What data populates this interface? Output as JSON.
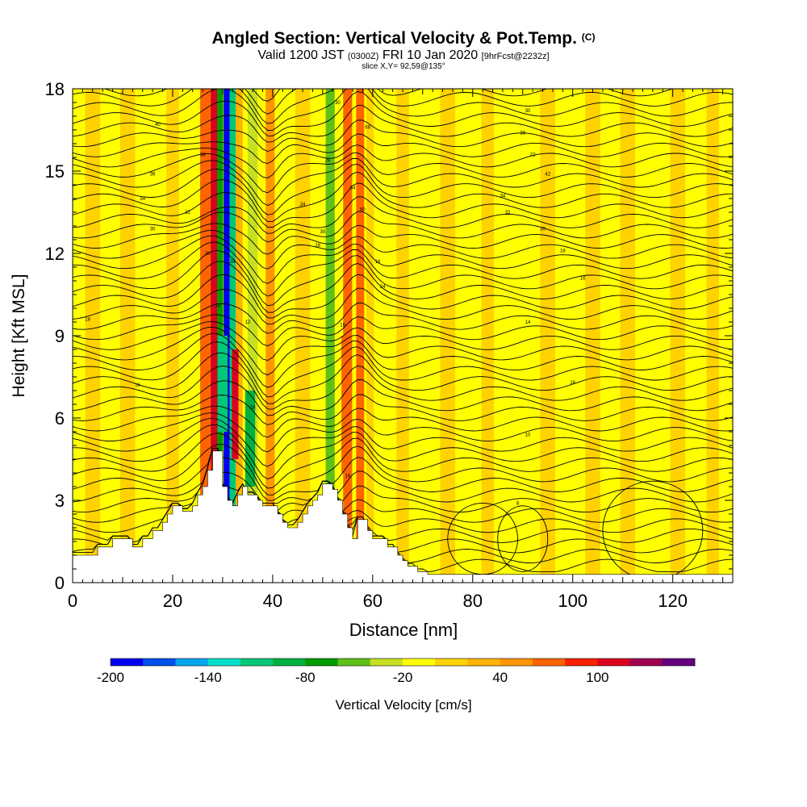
{
  "title": {
    "main": "Angled Section: Vertical Velocity & Pot.Temp.",
    "tag": "(C)"
  },
  "subtitle": {
    "valid": "Valid 1200 JST",
    "utc": "(0300Z)",
    "date": "FRI 10 Jan 2020",
    "fcst": "[9hrFcst@2232z]"
  },
  "slice_text": "slice X,Y= 92,59@135°",
  "chart_data": {
    "type": "heatmap",
    "xlabel": "Distance [nm]",
    "ylabel": "Height [Kft MSL]",
    "xlim": [
      0,
      132
    ],
    "ylim": [
      0,
      18
    ],
    "x_ticks": [
      0,
      20,
      40,
      60,
      80,
      100,
      120
    ],
    "y_ticks": [
      0,
      3,
      6,
      9,
      12,
      15,
      18
    ],
    "colorbar": {
      "label": "Vertical Velocity [cm/s]",
      "tick_values": [
        -200,
        -140,
        -80,
        -20,
        40,
        100
      ],
      "tick_labels": [
        "-200",
        "-140",
        "-80",
        "-20",
        "40",
        "100"
      ],
      "colors": [
        "#0000f0",
        "#0050f0",
        "#00a8f0",
        "#00e0c8",
        "#00c878",
        "#00b040",
        "#009c00",
        "#60c018",
        "#c8e020",
        "#ffff00",
        "#ffd200",
        "#ffb400",
        "#ff9600",
        "#ff6400",
        "#ff2000",
        "#dc0020",
        "#a00050",
        "#640080"
      ]
    },
    "background_value": -10,
    "velocity_bands": [
      {
        "x": 4,
        "width": 3,
        "value": 15
      },
      {
        "x": 11,
        "width": 3,
        "value": 10
      },
      {
        "x": 20,
        "width": 2.5,
        "value": 15
      },
      {
        "x": 26.5,
        "width": 2,
        "value": 75
      },
      {
        "x": 28.3,
        "width": 1.5,
        "value": 100
      },
      {
        "x": 29.5,
        "width": 1.2,
        "value": -80
      },
      {
        "x": 30.8,
        "width": 1.2,
        "value": -185
      },
      {
        "x": 32,
        "width": 1.2,
        "value": -110
      },
      {
        "x": 33.3,
        "width": 1.4,
        "value": 35
      },
      {
        "x": 36,
        "width": 2,
        "value": -40
      },
      {
        "x": 39.5,
        "width": 1.8,
        "value": 55
      },
      {
        "x": 46,
        "width": 3,
        "value": 15
      },
      {
        "x": 51.5,
        "width": 1.8,
        "value": -50
      },
      {
        "x": 55,
        "width": 1.8,
        "value": 75
      },
      {
        "x": 57.5,
        "width": 1.6,
        "value": 60
      },
      {
        "x": 59.5,
        "width": 1.5,
        "value": 15
      },
      {
        "x": 66,
        "width": 2.5,
        "value": 15
      },
      {
        "x": 75,
        "width": 3,
        "value": 15
      },
      {
        "x": 83,
        "width": 2.5,
        "value": 15
      },
      {
        "x": 95,
        "width": 3,
        "value": 15
      },
      {
        "x": 104,
        "width": 3,
        "value": 15
      },
      {
        "x": 111,
        "width": 3,
        "value": 15
      },
      {
        "x": 121,
        "width": 3,
        "value": 15
      },
      {
        "x": 128,
        "width": 2.5,
        "value": 15
      }
    ],
    "velocity_cells": [
      {
        "x": 30,
        "y0": 5.5,
        "y1": 9,
        "width": 2,
        "value": -120
      },
      {
        "x": 32.5,
        "y0": 4.5,
        "y1": 8.5,
        "width": 1.3,
        "value": 100
      },
      {
        "x": 35.5,
        "y0": 3.5,
        "y1": 7,
        "width": 2,
        "value": -90
      },
      {
        "x": 54.5,
        "y0": 4,
        "y1": 9,
        "width": 1.5,
        "value": 60
      }
    ],
    "terrain_height_kft": [
      [
        0,
        1.0
      ],
      [
        4,
        1.0
      ],
      [
        5,
        1.3
      ],
      [
        8,
        1.6
      ],
      [
        12,
        1.3
      ],
      [
        14,
        1.6
      ],
      [
        16,
        1.9
      ],
      [
        18,
        2.2
      ],
      [
        19,
        2.5
      ],
      [
        20,
        2.8
      ],
      [
        22,
        2.6
      ],
      [
        24,
        2.8
      ],
      [
        25,
        3.2
      ],
      [
        26,
        3.5
      ],
      [
        27,
        4.1
      ],
      [
        28,
        4.8
      ],
      [
        30,
        3.5
      ],
      [
        31,
        3.0
      ],
      [
        32,
        2.8
      ],
      [
        33,
        3.2
      ],
      [
        34,
        3.5
      ],
      [
        35,
        3.2
      ],
      [
        37,
        3.0
      ],
      [
        38,
        2.8
      ],
      [
        41,
        2.5
      ],
      [
        42,
        2.2
      ],
      [
        43,
        2.0
      ],
      [
        45,
        2.2
      ],
      [
        46,
        2.5
      ],
      [
        47,
        2.8
      ],
      [
        48,
        3.0
      ],
      [
        49,
        3.2
      ],
      [
        50,
        3.6
      ],
      [
        52,
        3.4
      ],
      [
        53,
        3.0
      ],
      [
        54,
        2.5
      ],
      [
        55,
        2.0
      ],
      [
        56,
        1.6
      ],
      [
        57,
        2.3
      ],
      [
        59,
        1.9
      ],
      [
        60,
        1.6
      ],
      [
        63,
        1.3
      ],
      [
        65,
        1.0
      ],
      [
        66,
        0.8
      ],
      [
        67,
        0.6
      ],
      [
        69,
        0.4
      ],
      [
        71,
        0.3
      ],
      [
        132,
        0.3
      ]
    ],
    "isentropes": {
      "values": [
        2,
        4,
        6,
        8,
        10,
        12,
        14,
        16,
        18,
        20,
        22,
        24,
        26,
        28,
        30,
        32,
        34,
        36,
        38,
        40,
        42,
        44,
        46,
        48,
        50,
        52,
        54,
        56,
        58,
        60,
        62,
        64,
        66,
        68,
        70,
        72,
        74,
        76,
        78,
        80,
        82,
        84,
        86,
        88,
        90,
        92,
        94,
        96,
        98
      ],
      "line_labels": [
        {
          "x": 3,
          "kft": 9.6,
          "text": "18"
        },
        {
          "x": 13,
          "kft": 7.2,
          "text": "16"
        },
        {
          "x": 29,
          "kft": 10.1,
          "text": "14"
        },
        {
          "x": 35,
          "kft": 9.5,
          "text": "12"
        },
        {
          "x": 36,
          "kft": 6.4,
          "text": "18"
        },
        {
          "x": 32,
          "kft": 11.7,
          "text": "24"
        },
        {
          "x": 27,
          "kft": 12.0,
          "text": "28"
        },
        {
          "x": 16,
          "kft": 12.9,
          "text": "30"
        },
        {
          "x": 23,
          "kft": 13.5,
          "text": "32"
        },
        {
          "x": 14,
          "kft": 14.0,
          "text": "34"
        },
        {
          "x": 16,
          "kft": 14.9,
          "text": "36"
        },
        {
          "x": 26,
          "kft": 15.6,
          "text": "38"
        },
        {
          "x": 17,
          "kft": 16.7,
          "text": "40"
        },
        {
          "x": 54,
          "kft": 9.4,
          "text": "16"
        },
        {
          "x": 55,
          "kft": 3.9,
          "text": "16"
        },
        {
          "x": 62,
          "kft": 10.8,
          "text": "24"
        },
        {
          "x": 61,
          "kft": 11.7,
          "text": "16"
        },
        {
          "x": 49,
          "kft": 12.3,
          "text": "28"
        },
        {
          "x": 50,
          "kft": 12.8,
          "text": "30"
        },
        {
          "x": 46,
          "kft": 13.8,
          "text": "24"
        },
        {
          "x": 58,
          "kft": 13.6,
          "text": "60"
        },
        {
          "x": 56,
          "kft": 14.4,
          "text": "64"
        },
        {
          "x": 51,
          "kft": 15.4,
          "text": "28"
        },
        {
          "x": 59,
          "kft": 16.6,
          "text": "68"
        },
        {
          "x": 53,
          "kft": 17.5,
          "text": "30"
        },
        {
          "x": 91,
          "kft": 17.2,
          "text": "30"
        },
        {
          "x": 90,
          "kft": 16.4,
          "text": "38"
        },
        {
          "x": 92,
          "kft": 15.6,
          "text": "22"
        },
        {
          "x": 95,
          "kft": 14.9,
          "text": "42"
        },
        {
          "x": 86,
          "kft": 14.1,
          "text": "34"
        },
        {
          "x": 87,
          "kft": 13.5,
          "text": "32"
        },
        {
          "x": 94,
          "kft": 12.9,
          "text": "30"
        },
        {
          "x": 98,
          "kft": 12.1,
          "text": "18"
        },
        {
          "x": 102,
          "kft": 11.1,
          "text": "16"
        },
        {
          "x": 91,
          "kft": 9.5,
          "text": "14"
        },
        {
          "x": 100,
          "kft": 7.3,
          "text": "16"
        },
        {
          "x": 91,
          "kft": 5.4,
          "text": "10"
        },
        {
          "x": 89,
          "kft": 2.9,
          "text": "8"
        }
      ]
    },
    "grid": false,
    "legend": "bottom colorbar"
  },
  "icons": {
    "section": "contour-section-plot"
  }
}
